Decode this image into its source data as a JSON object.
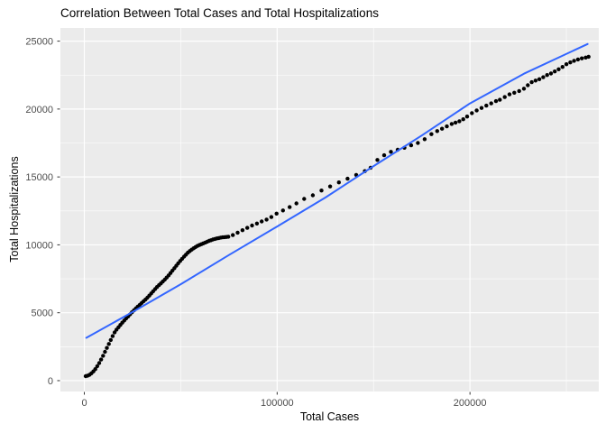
{
  "chart_data": {
    "type": "scatter",
    "title": "Correlation Between Total Cases and Total Hospitalizations",
    "xlabel": "Total Cases",
    "ylabel": "Total Hospitalizations",
    "xlim": [
      -12400,
      266800
    ],
    "ylim": [
      -800,
      25970
    ],
    "x_ticks": [
      0,
      100000,
      200000
    ],
    "x_tick_labels": [
      "0",
      "100000",
      "200000"
    ],
    "x_minor_ticks": [
      50000,
      150000,
      250000
    ],
    "y_ticks": [
      0,
      5000,
      10000,
      15000,
      20000,
      25000
    ],
    "y_tick_labels": [
      "0",
      "5000",
      "10000",
      "15000",
      "20000",
      "25000"
    ],
    "grid": true,
    "legend_position": "none",
    "colors": {
      "panel_background": "#EBEBEB",
      "gridline": "#FFFFFF",
      "point": "#000000",
      "fit_line": "#3366FF",
      "tick_mark": "#333333",
      "tick_label": "#4D4D4D",
      "title_text": "#000000"
    },
    "series": [
      {
        "name": "observations",
        "kind": "points",
        "points": [
          [
            700,
            330
          ],
          [
            1700,
            360
          ],
          [
            2700,
            430
          ],
          [
            3700,
            540
          ],
          [
            4700,
            680
          ],
          [
            5700,
            850
          ],
          [
            6700,
            1060
          ],
          [
            7700,
            1290
          ],
          [
            8700,
            1550
          ],
          [
            9700,
            1830
          ],
          [
            10700,
            2120
          ],
          [
            11700,
            2410
          ],
          [
            12700,
            2700
          ],
          [
            13700,
            2990
          ],
          [
            14700,
            3280
          ],
          [
            15700,
            3550
          ],
          [
            16700,
            3760
          ],
          [
            17700,
            3930
          ],
          [
            18700,
            4100
          ],
          [
            19700,
            4270
          ],
          [
            20700,
            4430
          ],
          [
            21700,
            4580
          ],
          [
            22700,
            4730
          ],
          [
            23700,
            4880
          ],
          [
            24700,
            5030
          ],
          [
            25700,
            5170
          ],
          [
            26700,
            5310
          ],
          [
            27700,
            5450
          ],
          [
            28700,
            5580
          ],
          [
            29700,
            5710
          ],
          [
            30700,
            5840
          ],
          [
            31700,
            5970
          ],
          [
            32700,
            6110
          ],
          [
            33700,
            6260
          ],
          [
            34700,
            6420
          ],
          [
            35700,
            6580
          ],
          [
            36700,
            6740
          ],
          [
            37700,
            6890
          ],
          [
            38700,
            7030
          ],
          [
            39700,
            7160
          ],
          [
            40700,
            7300
          ],
          [
            41700,
            7440
          ],
          [
            42700,
            7590
          ],
          [
            43700,
            7750
          ],
          [
            44700,
            7920
          ],
          [
            45700,
            8100
          ],
          [
            46700,
            8280
          ],
          [
            47700,
            8460
          ],
          [
            48700,
            8640
          ],
          [
            49700,
            8810
          ],
          [
            50700,
            8970
          ],
          [
            51700,
            9130
          ],
          [
            52700,
            9280
          ],
          [
            53700,
            9420
          ],
          [
            54700,
            9540
          ],
          [
            55700,
            9650
          ],
          [
            56700,
            9750
          ],
          [
            57700,
            9840
          ],
          [
            58700,
            9920
          ],
          [
            59700,
            9990
          ],
          [
            60700,
            10050
          ],
          [
            61700,
            10110
          ],
          [
            62700,
            10170
          ],
          [
            63700,
            10230
          ],
          [
            64700,
            10290
          ],
          [
            65700,
            10340
          ],
          [
            66700,
            10390
          ],
          [
            67700,
            10430
          ],
          [
            68700,
            10470
          ],
          [
            69700,
            10500
          ],
          [
            70700,
            10530
          ],
          [
            71700,
            10550
          ],
          [
            72700,
            10565
          ],
          [
            73700,
            10580
          ],
          [
            74700,
            10600
          ],
          [
            77000,
            10720
          ],
          [
            79500,
            10900
          ],
          [
            82000,
            11080
          ],
          [
            84500,
            11250
          ],
          [
            87000,
            11420
          ],
          [
            89500,
            11570
          ],
          [
            92000,
            11720
          ],
          [
            94500,
            11860
          ],
          [
            97000,
            12050
          ],
          [
            99700,
            12300
          ],
          [
            103000,
            12530
          ],
          [
            106500,
            12780
          ],
          [
            110000,
            13050
          ],
          [
            114000,
            13380
          ],
          [
            118500,
            13650
          ],
          [
            123000,
            14000
          ],
          [
            127500,
            14300
          ],
          [
            132000,
            14600
          ],
          [
            136500,
            14870
          ],
          [
            141000,
            15150
          ],
          [
            145500,
            15430
          ],
          [
            148500,
            15680
          ],
          [
            152000,
            16250
          ],
          [
            155500,
            16600
          ],
          [
            159000,
            16850
          ],
          [
            162500,
            17000
          ],
          [
            166000,
            17150
          ],
          [
            169500,
            17330
          ],
          [
            173000,
            17500
          ],
          [
            176500,
            17780
          ],
          [
            180000,
            18150
          ],
          [
            183000,
            18380
          ],
          [
            185500,
            18550
          ],
          [
            188000,
            18720
          ],
          [
            190500,
            18900
          ],
          [
            192500,
            19000
          ],
          [
            194500,
            19100
          ],
          [
            196500,
            19250
          ],
          [
            198500,
            19450
          ],
          [
            201000,
            19700
          ],
          [
            203500,
            19900
          ],
          [
            206000,
            20080
          ],
          [
            208500,
            20250
          ],
          [
            211000,
            20420
          ],
          [
            213500,
            20580
          ],
          [
            215500,
            20680
          ],
          [
            218000,
            20880
          ],
          [
            220500,
            21080
          ],
          [
            223000,
            21200
          ],
          [
            225500,
            21330
          ],
          [
            228000,
            21500
          ],
          [
            230000,
            21750
          ],
          [
            232000,
            21980
          ],
          [
            234000,
            22100
          ],
          [
            236000,
            22200
          ],
          [
            238000,
            22340
          ],
          [
            240000,
            22500
          ],
          [
            242000,
            22620
          ],
          [
            244000,
            22770
          ],
          [
            246000,
            22930
          ],
          [
            248000,
            23100
          ],
          [
            250000,
            23300
          ],
          [
            252000,
            23430
          ],
          [
            254000,
            23550
          ],
          [
            256000,
            23650
          ],
          [
            258000,
            23730
          ],
          [
            260000,
            23790
          ],
          [
            261500,
            23850
          ]
        ]
      },
      {
        "name": "linear-fit",
        "kind": "line",
        "points": [
          [
            1000,
            3150
          ],
          [
            25000,
            5050
          ],
          [
            50000,
            7100
          ],
          [
            75000,
            9250
          ],
          [
            100000,
            11350
          ],
          [
            125000,
            13480
          ],
          [
            150000,
            15800
          ],
          [
            175000,
            18050
          ],
          [
            200000,
            20420
          ],
          [
            228000,
            22600
          ],
          [
            261000,
            24790
          ]
        ]
      }
    ]
  }
}
